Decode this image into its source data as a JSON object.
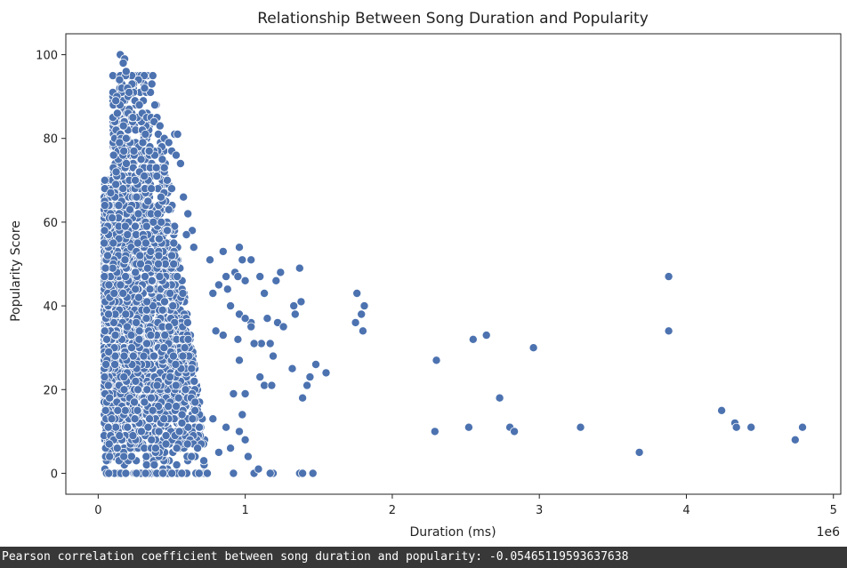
{
  "output": {
    "text": "Pearson correlation coefficient between song duration and popularity: -0.05465119593637638"
  },
  "chart_data": {
    "type": "scatter",
    "title": "Relationship Between Song Duration and Popularity",
    "xlabel": "Duration (ms)",
    "ylabel": "Popularity Score",
    "x_offset_label": "1e6",
    "xlim": [
      -220000,
      5050000
    ],
    "ylim": [
      -5,
      105
    ],
    "xticks": [
      0,
      1000000,
      2000000,
      3000000,
      4000000,
      5000000
    ],
    "xtick_labels": [
      "0",
      "1",
      "2",
      "3",
      "4",
      "5"
    ],
    "yticks": [
      0,
      20,
      40,
      60,
      80,
      100
    ],
    "ytick_labels": [
      "0",
      "20",
      "40",
      "60",
      "80",
      "100"
    ],
    "grid": false,
    "marker_color": "#4c72b0",
    "marker_edge_color": "#ffffff",
    "dense_cluster": {
      "x_range": [
        30000,
        800000
      ],
      "y_range": [
        0,
        100
      ],
      "note_count": 3000
    },
    "points": [
      [
        150000,
        100
      ],
      [
        180000,
        99
      ],
      [
        170000,
        98
      ],
      [
        190000,
        96
      ],
      [
        240000,
        93
      ],
      [
        230000,
        93
      ],
      [
        160000,
        92
      ],
      [
        200000,
        92
      ],
      [
        210000,
        91
      ],
      [
        120000,
        89
      ],
      [
        250000,
        89
      ],
      [
        280000,
        88
      ],
      [
        300000,
        86
      ],
      [
        330000,
        85
      ],
      [
        360000,
        85
      ],
      [
        400000,
        85
      ],
      [
        380000,
        84
      ],
      [
        420000,
        83
      ],
      [
        520000,
        81
      ],
      [
        540000,
        81
      ],
      [
        450000,
        80
      ],
      [
        480000,
        79
      ],
      [
        500000,
        77
      ],
      [
        530000,
        76
      ],
      [
        560000,
        74
      ],
      [
        450000,
        73
      ],
      [
        470000,
        70
      ],
      [
        500000,
        68
      ],
      [
        580000,
        66
      ],
      [
        610000,
        62
      ],
      [
        640000,
        58
      ],
      [
        600000,
        57
      ],
      [
        650000,
        54
      ],
      [
        760000,
        51
      ],
      [
        850000,
        53
      ],
      [
        960000,
        54
      ],
      [
        980000,
        51
      ],
      [
        1040000,
        51
      ],
      [
        930000,
        48
      ],
      [
        870000,
        47
      ],
      [
        950000,
        47
      ],
      [
        1000000,
        46
      ],
      [
        1100000,
        47
      ],
      [
        1240000,
        48
      ],
      [
        1370000,
        49
      ],
      [
        1130000,
        43
      ],
      [
        1210000,
        46
      ],
      [
        820000,
        45
      ],
      [
        780000,
        43
      ],
      [
        880000,
        44
      ],
      [
        900000,
        40
      ],
      [
        960000,
        38
      ],
      [
        1040000,
        36
      ],
      [
        1000000,
        37
      ],
      [
        1150000,
        37
      ],
      [
        1220000,
        36
      ],
      [
        1340000,
        38
      ],
      [
        1330000,
        40
      ],
      [
        1380000,
        41
      ],
      [
        1260000,
        35
      ],
      [
        1110000,
        31
      ],
      [
        1060000,
        31
      ],
      [
        1170000,
        31
      ],
      [
        850000,
        33
      ],
      [
        950000,
        32
      ],
      [
        1040000,
        35
      ],
      [
        800000,
        34
      ],
      [
        1190000,
        28
      ],
      [
        960000,
        27
      ],
      [
        1100000,
        23
      ],
      [
        1130000,
        21
      ],
      [
        1180000,
        21
      ],
      [
        1320000,
        25
      ],
      [
        1480000,
        26
      ],
      [
        1550000,
        24
      ],
      [
        1440000,
        23
      ],
      [
        1420000,
        21
      ],
      [
        1390000,
        18
      ],
      [
        920000,
        19
      ],
      [
        1000000,
        19
      ],
      [
        1060000,
        0
      ],
      [
        1090000,
        1
      ],
      [
        920000,
        0
      ],
      [
        1190000,
        0
      ],
      [
        1170000,
        0
      ],
      [
        1370000,
        0
      ],
      [
        1390000,
        0
      ],
      [
        1460000,
        0
      ],
      [
        820000,
        5
      ],
      [
        870000,
        11
      ],
      [
        980000,
        14
      ],
      [
        960000,
        10
      ],
      [
        1000000,
        8
      ],
      [
        1020000,
        4
      ],
      [
        900000,
        6
      ],
      [
        780000,
        13
      ],
      [
        1760000,
        43
      ],
      [
        1810000,
        40
      ],
      [
        1790000,
        38
      ],
      [
        1750000,
        36
      ],
      [
        1800000,
        34
      ],
      [
        2300000,
        27
      ],
      [
        2290000,
        10
      ],
      [
        2520000,
        11
      ],
      [
        2550000,
        32
      ],
      [
        2640000,
        33
      ],
      [
        2730000,
        18
      ],
      [
        2800000,
        11
      ],
      [
        2830000,
        10
      ],
      [
        2960000,
        30
      ],
      [
        3280000,
        11
      ],
      [
        3680000,
        5
      ],
      [
        3880000,
        47
      ],
      [
        3880000,
        34
      ],
      [
        4240000,
        15
      ],
      [
        4330000,
        12
      ],
      [
        4340000,
        11
      ],
      [
        4440000,
        11
      ],
      [
        4740000,
        8
      ],
      [
        4790000,
        11
      ]
    ]
  }
}
